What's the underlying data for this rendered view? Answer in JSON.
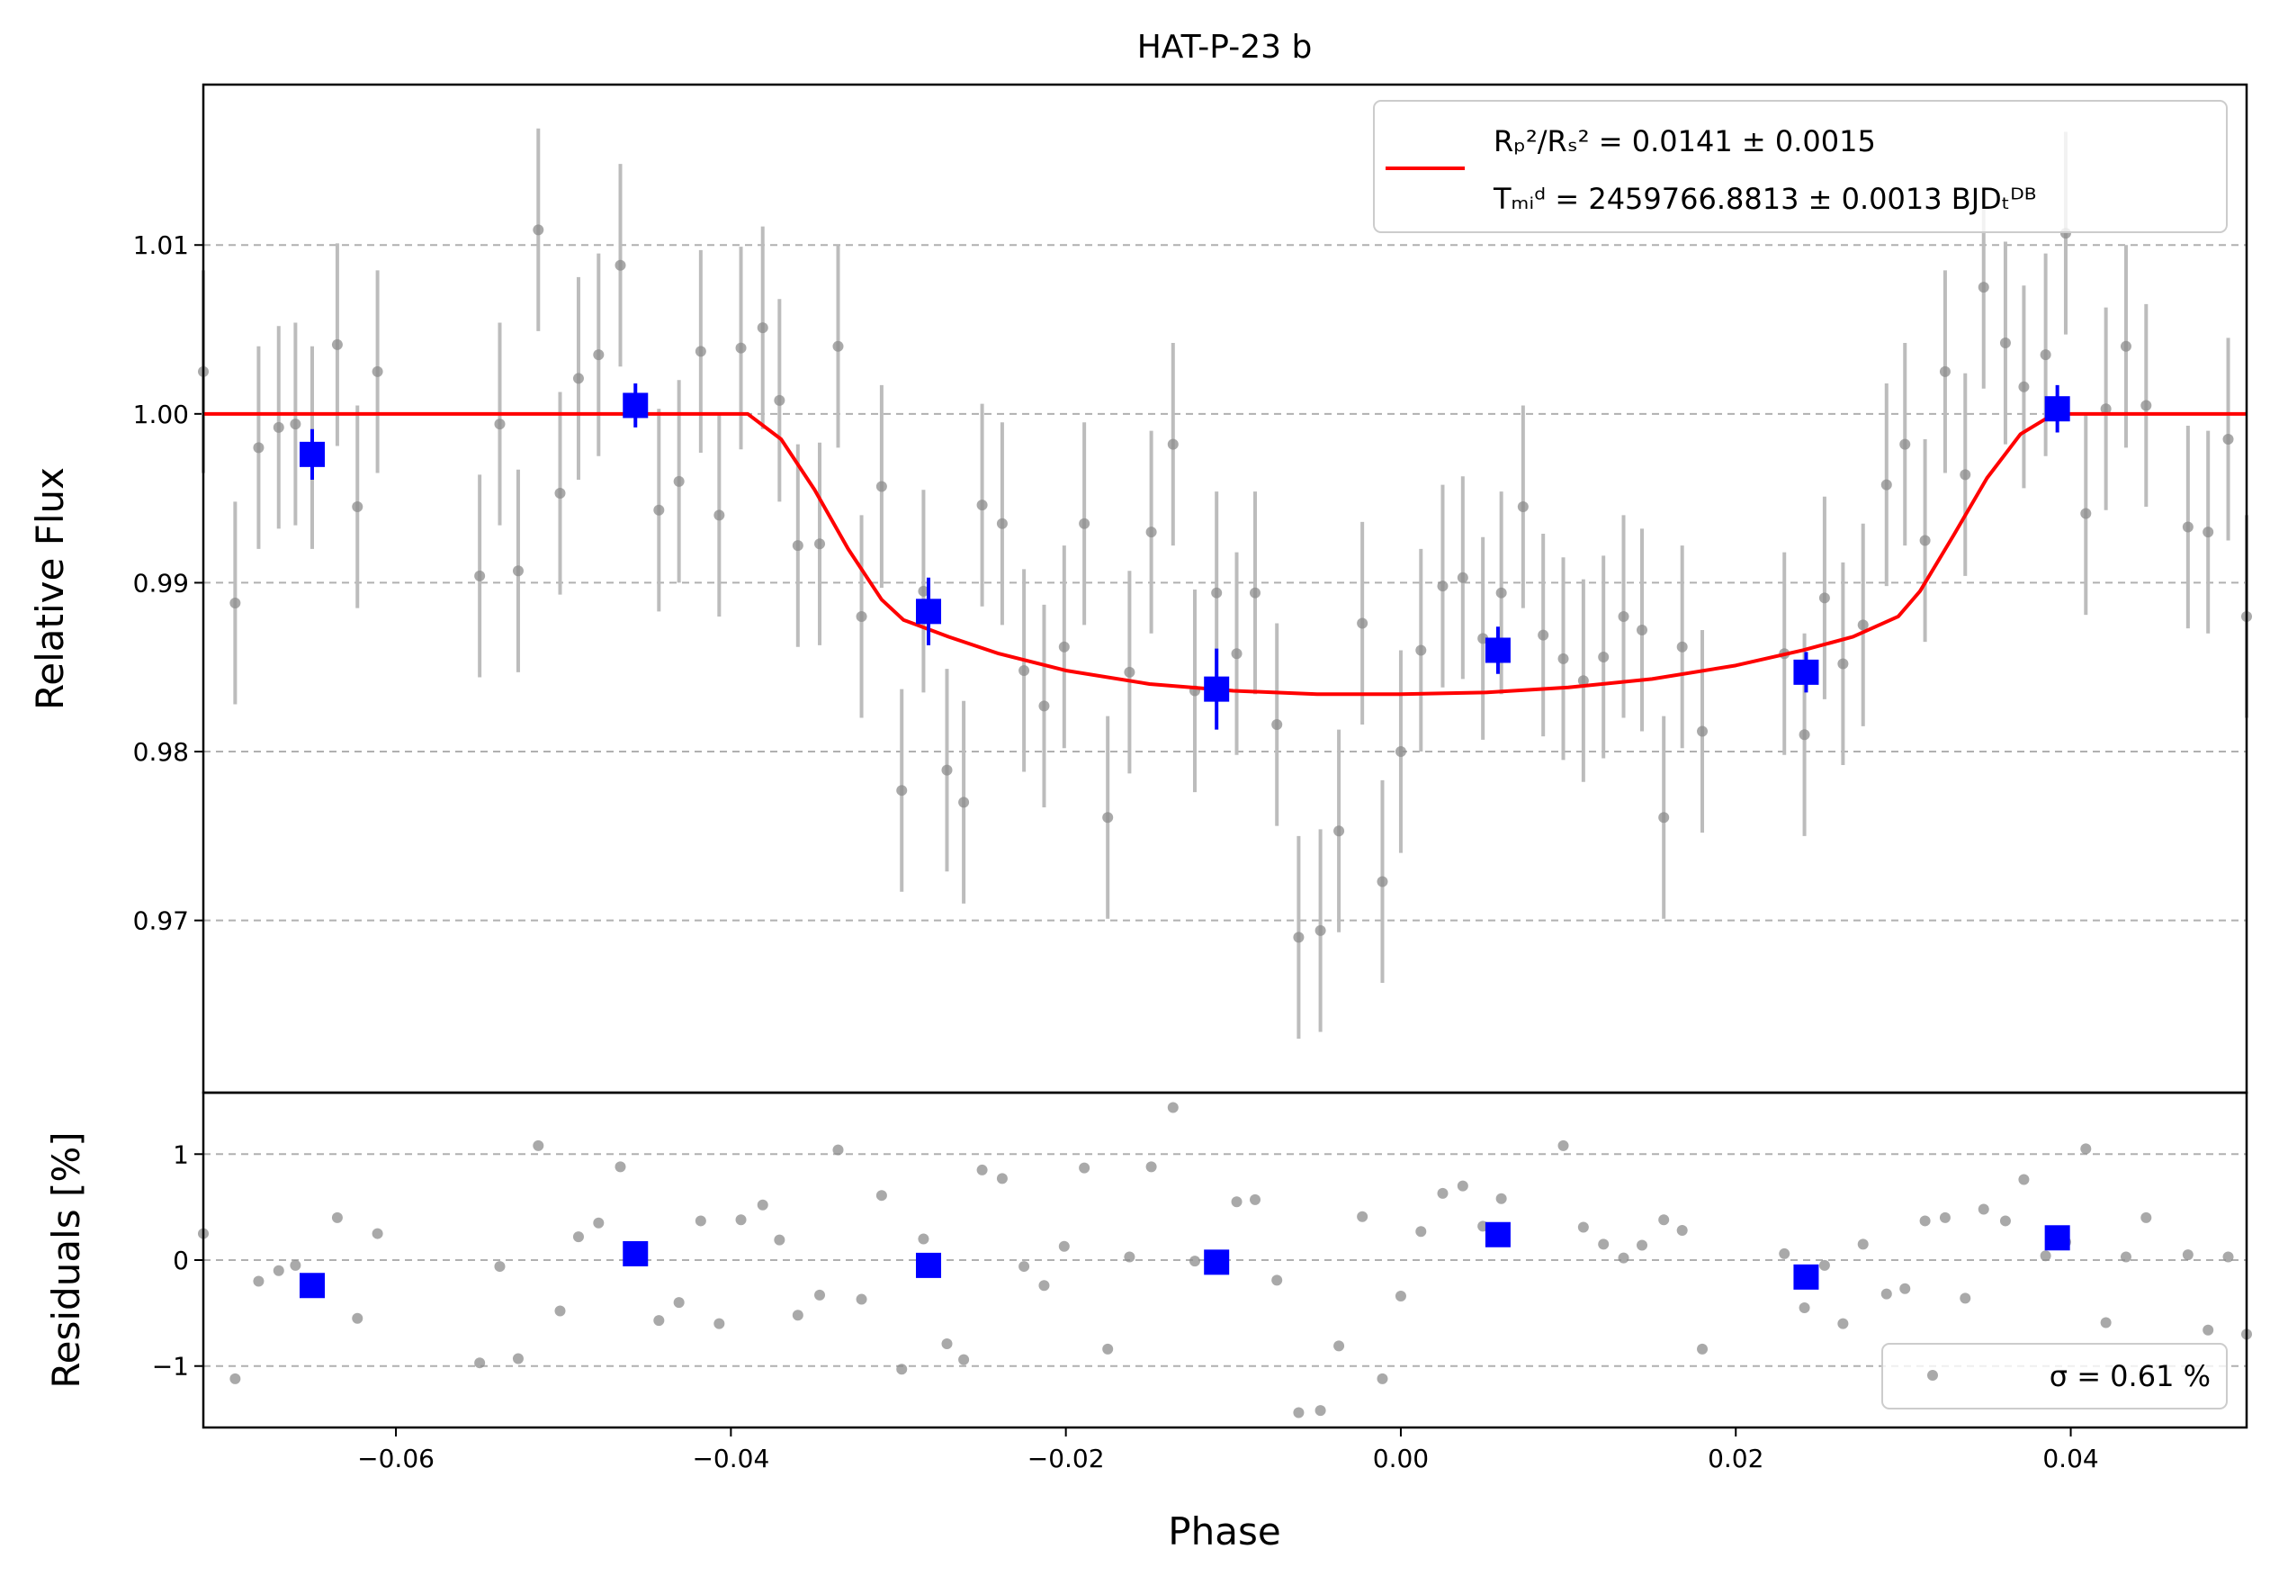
{
  "chart_data": [
    {
      "type": "scatter",
      "title": "HAT-P-23 b",
      "xlabel": "",
      "ylabel": "Relative Flux",
      "xlim": [
        -0.0715,
        0.0505
      ],
      "ylim": [
        0.9598,
        1.0195
      ],
      "yticks": [
        {
          "value": 0.97,
          "label": "0.97"
        },
        {
          "value": 0.98,
          "label": "0.98"
        },
        {
          "value": 0.99,
          "label": "0.99"
        },
        {
          "value": 1.0,
          "label": "1.00"
        },
        {
          "value": 1.01,
          "label": "1.01"
        }
      ],
      "grid": "y-dashed",
      "legend": {
        "placement": "top-right",
        "entries": [
          {
            "label_line1": "Rₚ²/Rₛ² = 0.0141 ± 0.0015",
            "label_line2": "Tₘᵢᵈ = 2459766.8813 ± 0.0013 BJDₜᴰᴮ",
            "color": "#ff0000",
            "marker": "line"
          }
        ]
      },
      "series": [
        {
          "kind": "data",
          "color": "#8c8c8c",
          "errcolor": "#bcbcbc",
          "x": [
            -0.0715,
            -0.0696,
            -0.0682,
            -0.067,
            -0.066,
            -0.065,
            -0.0635,
            -0.0623,
            -0.0611,
            -0.055,
            -0.0538,
            -0.0527,
            -0.0515,
            -0.0502,
            -0.0491,
            -0.0479,
            -0.0466,
            -0.0443,
            -0.0431,
            -0.0418,
            -0.0407,
            -0.0394,
            -0.0381,
            -0.0371,
            -0.036,
            -0.0347,
            -0.0336,
            -0.0322,
            -0.031,
            -0.0298,
            -0.0285,
            -0.0271,
            -0.0261,
            -0.025,
            -0.0238,
            -0.0225,
            -0.0213,
            -0.0201,
            -0.0189,
            -0.0175,
            -0.0162,
            -0.0149,
            -0.0136,
            -0.0123,
            -0.011,
            -0.0098,
            -0.0087,
            -0.0074,
            -0.0061,
            -0.0048,
            -0.0037,
            -0.0023,
            -0.0011,
            0.0,
            0.0012,
            0.0025,
            0.0037,
            0.0049,
            0.006,
            0.0073,
            0.0085,
            0.0097,
            0.0109,
            0.0121,
            0.0133,
            0.0144,
            0.0157,
            0.0168,
            0.018,
            0.0229,
            0.0241,
            0.0253,
            0.0264,
            0.0276,
            0.029,
            0.0301,
            0.0313,
            0.0325,
            0.0337,
            0.0348,
            0.0361,
            0.0372,
            0.0385,
            0.0397,
            0.0409,
            0.0421,
            0.0433,
            0.0445,
            0.047,
            0.0482,
            0.0494,
            0.0505
          ],
          "y": [
            1.0025,
            0.9888,
            0.998,
            0.9992,
            0.9994,
            0.998,
            1.0041,
            0.9945,
            1.0025,
            0.9904,
            0.9994,
            0.9907,
            1.0109,
            0.9953,
            1.0021,
            1.0035,
            1.0088,
            0.9943,
            0.996,
            1.0037,
            0.994,
            1.0039,
            1.0051,
            1.0008,
            0.9922,
            0.9923,
            1.004,
            0.988,
            0.9957,
            0.9777,
            0.9895,
            0.9789,
            0.977,
            0.9946,
            0.9935,
            0.9848,
            0.9827,
            0.9862,
            0.9935,
            0.9761,
            0.9847,
            0.993,
            0.9982,
            0.9836,
            0.9894,
            0.9858,
            0.9894,
            0.9816,
            0.969,
            0.9694,
            0.9753,
            0.9876,
            0.9723,
            0.98,
            0.986,
            0.9898,
            0.9903,
            0.9867,
            0.9894,
            0.9945,
            0.9869,
            0.9855,
            0.9842,
            0.9856,
            0.988,
            0.9872,
            0.9761,
            0.9862,
            0.9812,
            0.9858,
            0.981,
            0.9891,
            0.9852,
            0.9875,
            0.9958,
            0.9982,
            0.9925,
            1.0025,
            0.9964,
            1.0075,
            1.0042,
            1.0016,
            1.0035,
            1.0107,
            0.9941,
            1.0003,
            1.004,
            1.0005,
            0.9933,
            0.993,
            0.9985,
            0.988
          ],
          "err": 0.006
        },
        {
          "kind": "binned",
          "color": "#0000ff",
          "x": [
            -0.065,
            -0.0457,
            -0.0282,
            -0.011,
            0.0058,
            0.0242,
            0.0392
          ],
          "y": [
            0.9976,
            1.0005,
            0.9883,
            0.9837,
            0.986,
            0.9847,
            1.0003
          ],
          "err": [
            0.0015,
            0.0013,
            0.002,
            0.0024,
            0.0014,
            0.0012,
            0.0014
          ]
        },
        {
          "kind": "model",
          "color": "#ff0000",
          "x": [
            -0.0715,
            -0.039,
            -0.037,
            -0.035,
            -0.033,
            -0.031,
            -0.0297,
            -0.027,
            -0.024,
            -0.02,
            -0.015,
            -0.01,
            -0.005,
            0.0,
            0.005,
            0.01,
            0.015,
            0.02,
            0.024,
            0.027,
            0.0297,
            0.031,
            0.033,
            0.035,
            0.037,
            0.039,
            0.0505
          ],
          "y": [
            1.0,
            1.0,
            0.9985,
            0.9955,
            0.992,
            0.989,
            0.9878,
            0.9868,
            0.9858,
            0.9848,
            0.984,
            0.9836,
            0.9834,
            0.9834,
            0.9835,
            0.9838,
            0.9843,
            0.9851,
            0.986,
            0.9868,
            0.988,
            0.9895,
            0.9928,
            0.9962,
            0.9988,
            1.0,
            1.0
          ]
        }
      ]
    },
    {
      "type": "scatter",
      "title": "",
      "xlabel": "Phase",
      "ylabel": "Residuals [%]",
      "xlim": [
        -0.0715,
        0.0505
      ],
      "ylim": [
        -1.58,
        1.58
      ],
      "yticks": [
        {
          "value": -1,
          "label": "−1"
        },
        {
          "value": 0,
          "label": "0"
        },
        {
          "value": 1,
          "label": "1"
        }
      ],
      "xticks": [
        {
          "value": -0.06,
          "label": "−0.06"
        },
        {
          "value": -0.04,
          "label": "−0.04"
        },
        {
          "value": -0.02,
          "label": "−0.02"
        },
        {
          "value": 0.0,
          "label": "0.00"
        },
        {
          "value": 0.02,
          "label": "0.02"
        },
        {
          "value": 0.04,
          "label": "0.04"
        }
      ],
      "grid": "y-dashed",
      "legend": {
        "placement": "bottom-right",
        "entries": [
          {
            "label": "σ = 0.61 %",
            "color": "#8c8c8c",
            "marker": "dot"
          }
        ]
      },
      "series": [
        {
          "kind": "data",
          "color": "#8c8c8c",
          "x": [
            -0.0715,
            -0.0696,
            -0.0682,
            -0.067,
            -0.066,
            -0.0635,
            -0.0623,
            -0.0611,
            -0.055,
            -0.0538,
            -0.0527,
            -0.0515,
            -0.0502,
            -0.0491,
            -0.0479,
            -0.0466,
            -0.0443,
            -0.0431,
            -0.0418,
            -0.0407,
            -0.0394,
            -0.0381,
            -0.0371,
            -0.036,
            -0.0347,
            -0.0336,
            -0.0322,
            -0.031,
            -0.0298,
            -0.0285,
            -0.0271,
            -0.0261,
            -0.025,
            -0.0238,
            -0.0225,
            -0.0213,
            -0.0201,
            -0.0189,
            -0.0175,
            -0.0162,
            -0.0149,
            -0.0136,
            -0.0123,
            -0.0098,
            -0.0087,
            -0.0074,
            -0.0061,
            -0.0048,
            -0.0037,
            -0.0023,
            -0.0011,
            0.0,
            0.0012,
            0.0025,
            0.0037,
            0.0049,
            0.006,
            0.0097,
            0.0109,
            0.0121,
            0.0133,
            0.0144,
            0.0157,
            0.0168,
            0.018,
            0.0229,
            0.0241,
            0.0253,
            0.0264,
            0.0276,
            0.029,
            0.0301,
            0.0313,
            0.0325,
            0.0337,
            0.0348,
            0.0361,
            0.0372,
            0.0385,
            0.0397,
            0.0409,
            0.0421,
            0.0433,
            0.0445,
            0.047,
            0.0482,
            0.0494,
            0.0505
          ],
          "y": [
            0.25,
            -1.12,
            -0.2,
            -0.1,
            -0.05,
            0.4,
            -0.55,
            0.25,
            -0.97,
            -0.06,
            -0.93,
            1.08,
            -0.48,
            0.22,
            0.35,
            0.88,
            -0.57,
            -0.4,
            0.37,
            -0.6,
            0.38,
            0.52,
            0.19,
            -0.52,
            -0.33,
            1.04,
            -0.37,
            0.61,
            -1.03,
            0.2,
            -0.79,
            -0.94,
            0.85,
            0.77,
            -0.06,
            -0.24,
            0.13,
            0.87,
            -0.84,
            0.03,
            0.88,
            1.44,
            -0.01,
            0.55,
            0.57,
            -0.19,
            -1.44,
            -1.42,
            -0.81,
            0.41,
            -1.12,
            -0.34,
            0.27,
            0.63,
            0.7,
            0.32,
            0.58,
            1.08,
            0.31,
            0.15,
            0.02,
            0.14,
            0.38,
            0.28,
            -0.84,
            0.06,
            -0.45,
            -0.05,
            -0.6,
            0.15,
            -0.32,
            -0.27,
            0.37,
            0.4,
            -0.36,
            0.48,
            0.37,
            0.76,
            0.04,
            0.17,
            1.05,
            -0.59,
            0.03,
            0.4,
            0.05,
            -0.66,
            0.03,
            -0.7
          ]
        },
        {
          "kind": "binned",
          "color": "#0000ff",
          "x": [
            -0.065,
            -0.0457,
            -0.0282,
            -0.011,
            0.0058,
            0.0242,
            0.0392
          ],
          "y": [
            -0.24,
            0.06,
            -0.05,
            -0.02,
            0.24,
            -0.16,
            0.21
          ]
        }
      ]
    }
  ]
}
